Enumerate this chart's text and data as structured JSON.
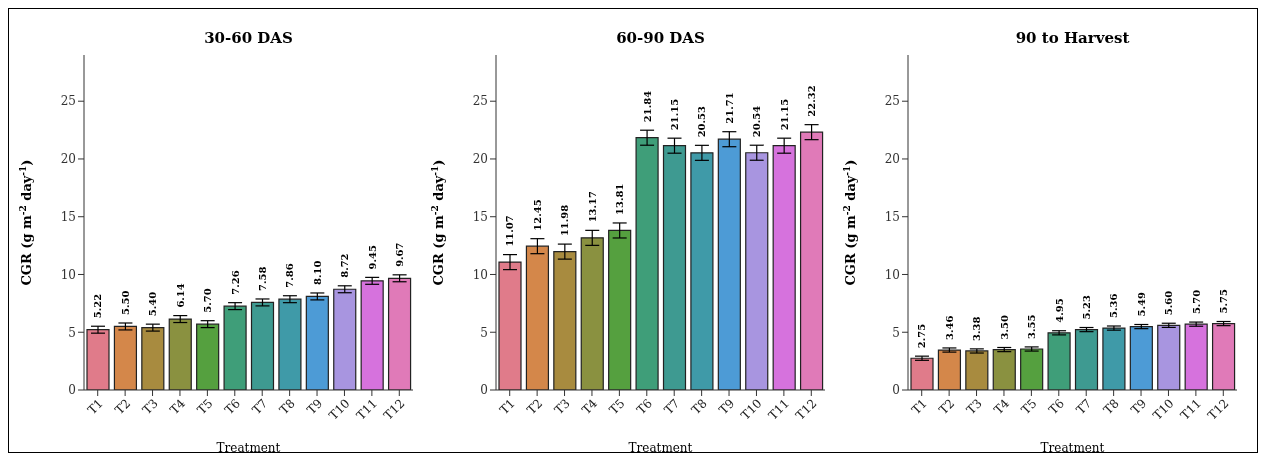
{
  "chart_data": [
    {
      "type": "bar",
      "title": "30-60 DAS",
      "xlabel": "Treatment",
      "ylabel": "CGR (g m$^{-2}$ day$^{-1}$)",
      "categories": [
        "T1",
        "T2",
        "T3",
        "T4",
        "T5",
        "T6",
        "T7",
        "T8",
        "T9",
        "T10",
        "T11",
        "T12"
      ],
      "values": [
        5.22,
        5.5,
        5.4,
        6.14,
        5.7,
        7.26,
        7.58,
        7.86,
        8.1,
        8.72,
        9.45,
        9.67
      ],
      "value_labels": [
        "5.22",
        "5.50",
        "5.40",
        "6.14",
        "5.70",
        "7.26",
        "7.58",
        "7.86",
        "8.10",
        "8.72",
        "9.45",
        "9.67"
      ],
      "errors": [
        0.3,
        0.3,
        0.3,
        0.3,
        0.3,
        0.3,
        0.3,
        0.3,
        0.3,
        0.3,
        0.3,
        0.3
      ],
      "colors": [
        "#e07b8a",
        "#d4874a",
        "#a88b3f",
        "#8a9140",
        "#55a03f",
        "#3f9e79",
        "#3e9a91",
        "#3f9aa8",
        "#4d9bd6",
        "#a895e0",
        "#d672dd",
        "#e07ab8"
      ],
      "ylim": [
        0,
        29
      ],
      "yticks": [
        0,
        5,
        10,
        15,
        20,
        25
      ]
    },
    {
      "type": "bar",
      "title": "60-90 DAS",
      "xlabel": "Treatment",
      "ylabel": "CGR (g m$^{-2}$ day$^{-1}$)",
      "categories": [
        "T1",
        "T2",
        "T3",
        "T4",
        "T5",
        "T6",
        "T7",
        "T8",
        "T9",
        "T10",
        "T11",
        "T12"
      ],
      "values": [
        11.07,
        12.45,
        11.98,
        13.17,
        13.81,
        21.84,
        21.15,
        20.53,
        21.71,
        20.54,
        21.15,
        22.32
      ],
      "value_labels": [
        "11.07",
        "12.45",
        "11.98",
        "13.17",
        "13.81",
        "21.84",
        "21.15",
        "20.53",
        "21.71",
        "20.54",
        "21.15",
        "22.32"
      ],
      "errors": [
        0.65,
        0.65,
        0.65,
        0.65,
        0.65,
        0.65,
        0.65,
        0.65,
        0.65,
        0.65,
        0.65,
        0.65
      ],
      "colors": [
        "#e07b8a",
        "#d4874a",
        "#a88b3f",
        "#8a9140",
        "#55a03f",
        "#3f9e79",
        "#3e9a91",
        "#3f9aa8",
        "#4d9bd6",
        "#a895e0",
        "#d672dd",
        "#e07ab8"
      ],
      "ylim": [
        0,
        29
      ],
      "yticks": [
        0,
        5,
        10,
        15,
        20,
        25
      ]
    },
    {
      "type": "bar",
      "title": "90 to Harvest",
      "xlabel": "Treatment",
      "ylabel": "CGR (g m$^{-2}$ day$^{-1}$)",
      "categories": [
        "T1",
        "T2",
        "T3",
        "T4",
        "T5",
        "T6",
        "T7",
        "T8",
        "T9",
        "T10",
        "T11",
        "T12"
      ],
      "values": [
        2.75,
        3.46,
        3.38,
        3.5,
        3.55,
        4.95,
        5.23,
        5.36,
        5.49,
        5.6,
        5.7,
        5.75
      ],
      "value_labels": [
        "2.75",
        "3.46",
        "3.38",
        "3.50",
        "3.55",
        "4.95",
        "5.23",
        "5.36",
        "5.49",
        "5.60",
        "5.70",
        "5.75"
      ],
      "errors": [
        0.18,
        0.18,
        0.18,
        0.18,
        0.18,
        0.18,
        0.18,
        0.18,
        0.18,
        0.18,
        0.18,
        0.18
      ],
      "colors": [
        "#e07b8a",
        "#d4874a",
        "#a88b3f",
        "#8a9140",
        "#55a03f",
        "#3f9e79",
        "#3e9a91",
        "#3f9aa8",
        "#4d9bd6",
        "#a895e0",
        "#d672dd",
        "#e07ab8"
      ],
      "ylim": [
        0,
        29
      ],
      "yticks": [
        0,
        5,
        10,
        15,
        20,
        25
      ]
    }
  ]
}
